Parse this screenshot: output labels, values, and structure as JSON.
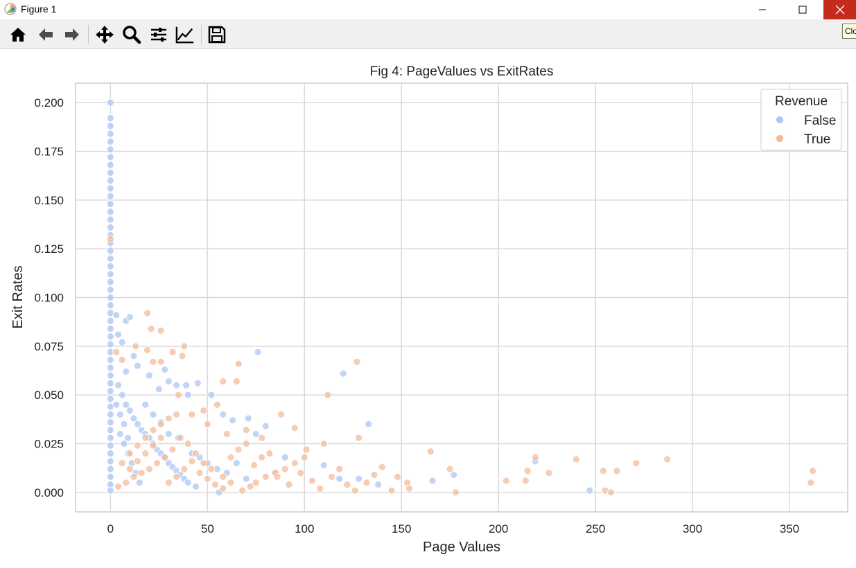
{
  "window": {
    "title": "Figure 1",
    "tooltip": "Close",
    "close_color": "#c42b1c"
  },
  "toolbar": {
    "buttons": [
      "home-icon",
      "back-arrow-icon",
      "forward-arrow-icon",
      "pan-icon",
      "zoom-icon",
      "subplots-icon",
      "axes-edit-icon",
      "save-icon"
    ]
  },
  "chart_data": {
    "type": "scatter",
    "title": "Fig 4: PageValues vs ExitRates",
    "xlabel": "Page Values",
    "ylabel": "Exit Rates",
    "xlim": [
      -18,
      380
    ],
    "ylim": [
      -0.01,
      0.21
    ],
    "xticks": [
      0,
      50,
      100,
      150,
      200,
      250,
      300,
      350
    ],
    "yticks": [
      0.0,
      0.025,
      0.05,
      0.075,
      0.1,
      0.125,
      0.15,
      0.175,
      0.2
    ],
    "ytick_labels": [
      "0.000",
      "0.025",
      "0.050",
      "0.075",
      "0.100",
      "0.125",
      "0.150",
      "0.175",
      "0.200"
    ],
    "grid": true,
    "legend": {
      "title": "Revenue",
      "position": "top-right"
    },
    "series": [
      {
        "name": "False",
        "color": "#aec7f5",
        "points": [
          [
            0,
            0.2
          ],
          [
            0,
            0.192
          ],
          [
            0,
            0.188
          ],
          [
            0,
            0.184
          ],
          [
            0,
            0.18
          ],
          [
            0,
            0.176
          ],
          [
            0,
            0.172
          ],
          [
            0,
            0.168
          ],
          [
            0,
            0.164
          ],
          [
            0,
            0.16
          ],
          [
            0,
            0.156
          ],
          [
            0,
            0.152
          ],
          [
            0,
            0.148
          ],
          [
            0,
            0.144
          ],
          [
            0,
            0.14
          ],
          [
            0,
            0.136
          ],
          [
            0,
            0.132
          ],
          [
            0,
            0.128
          ],
          [
            0,
            0.124
          ],
          [
            0,
            0.12
          ],
          [
            0,
            0.116
          ],
          [
            0,
            0.112
          ],
          [
            0,
            0.108
          ],
          [
            0,
            0.104
          ],
          [
            0,
            0.1
          ],
          [
            0,
            0.096
          ],
          [
            0,
            0.092
          ],
          [
            0,
            0.088
          ],
          [
            0,
            0.084
          ],
          [
            0,
            0.08
          ],
          [
            0,
            0.076
          ],
          [
            0,
            0.072
          ],
          [
            0,
            0.068
          ],
          [
            0,
            0.064
          ],
          [
            0,
            0.06
          ],
          [
            0,
            0.056
          ],
          [
            0,
            0.052
          ],
          [
            0,
            0.048
          ],
          [
            0,
            0.044
          ],
          [
            0,
            0.04
          ],
          [
            0,
            0.036
          ],
          [
            0,
            0.032
          ],
          [
            0,
            0.028
          ],
          [
            0,
            0.024
          ],
          [
            0,
            0.02
          ],
          [
            0,
            0.016
          ],
          [
            0,
            0.012
          ],
          [
            0,
            0.008
          ],
          [
            0,
            0.004
          ],
          [
            0,
            0.001
          ],
          [
            3,
            0.091
          ],
          [
            8,
            0.088
          ],
          [
            10,
            0.09
          ],
          [
            6,
            0.077
          ],
          [
            4,
            0.081
          ],
          [
            12,
            0.07
          ],
          [
            8,
            0.062
          ],
          [
            14,
            0.065
          ],
          [
            20,
            0.06
          ],
          [
            28,
            0.063
          ],
          [
            30,
            0.057
          ],
          [
            34,
            0.055
          ],
          [
            45,
            0.056
          ],
          [
            39,
            0.055
          ],
          [
            25,
            0.053
          ],
          [
            40,
            0.05
          ],
          [
            52,
            0.05
          ],
          [
            58,
            0.04
          ],
          [
            63,
            0.037
          ],
          [
            71,
            0.038
          ],
          [
            76,
            0.072
          ],
          [
            120,
            0.061
          ],
          [
            133,
            0.035
          ],
          [
            4,
            0.055
          ],
          [
            6,
            0.05
          ],
          [
            8,
            0.045
          ],
          [
            10,
            0.042
          ],
          [
            12,
            0.038
          ],
          [
            14,
            0.035
          ],
          [
            16,
            0.032
          ],
          [
            18,
            0.03
          ],
          [
            20,
            0.028
          ],
          [
            22,
            0.025
          ],
          [
            24,
            0.022
          ],
          [
            26,
            0.02
          ],
          [
            28,
            0.018
          ],
          [
            30,
            0.015
          ],
          [
            32,
            0.013
          ],
          [
            34,
            0.011
          ],
          [
            36,
            0.009
          ],
          [
            38,
            0.007
          ],
          [
            40,
            0.005
          ],
          [
            5,
            0.03
          ],
          [
            7,
            0.025
          ],
          [
            9,
            0.02
          ],
          [
            11,
            0.015
          ],
          [
            13,
            0.01
          ],
          [
            15,
            0.005
          ],
          [
            3,
            0.045
          ],
          [
            5,
            0.04
          ],
          [
            7,
            0.035
          ],
          [
            9,
            0.028
          ],
          [
            18,
            0.045
          ],
          [
            22,
            0.04
          ],
          [
            26,
            0.036
          ],
          [
            30,
            0.03
          ],
          [
            35,
            0.028
          ],
          [
            42,
            0.02
          ],
          [
            46,
            0.018
          ],
          [
            50,
            0.015
          ],
          [
            55,
            0.012
          ],
          [
            60,
            0.01
          ],
          [
            65,
            0.015
          ],
          [
            70,
            0.007
          ],
          [
            75,
            0.03
          ],
          [
            80,
            0.034
          ],
          [
            85,
            0.01
          ],
          [
            90,
            0.018
          ],
          [
            110,
            0.014
          ],
          [
            118,
            0.007
          ],
          [
            128,
            0.007
          ],
          [
            138,
            0.004
          ],
          [
            166,
            0.006
          ],
          [
            177,
            0.009
          ],
          [
            219,
            0.016
          ],
          [
            247,
            0.001
          ],
          [
            56,
            0.0
          ],
          [
            44,
            0.003
          ]
        ]
      },
      {
        "name": "True",
        "color": "#f5b99a",
        "points": [
          [
            0,
            0.13
          ],
          [
            19,
            0.092
          ],
          [
            21,
            0.084
          ],
          [
            26,
            0.083
          ],
          [
            3,
            0.072
          ],
          [
            6,
            0.068
          ],
          [
            13,
            0.075
          ],
          [
            19,
            0.073
          ],
          [
            22,
            0.067
          ],
          [
            26,
            0.067
          ],
          [
            32,
            0.072
          ],
          [
            37,
            0.07
          ],
          [
            38,
            0.075
          ],
          [
            35,
            0.05
          ],
          [
            42,
            0.04
          ],
          [
            48,
            0.042
          ],
          [
            55,
            0.045
          ],
          [
            58,
            0.057
          ],
          [
            65,
            0.057
          ],
          [
            66,
            0.066
          ],
          [
            50,
            0.035
          ],
          [
            60,
            0.03
          ],
          [
            70,
            0.032
          ],
          [
            78,
            0.028
          ],
          [
            88,
            0.04
          ],
          [
            95,
            0.033
          ],
          [
            101,
            0.022
          ],
          [
            112,
            0.05
          ],
          [
            127,
            0.067
          ],
          [
            128,
            0.028
          ],
          [
            110,
            0.025
          ],
          [
            100,
            0.018
          ],
          [
            95,
            0.015
          ],
          [
            90,
            0.012
          ],
          [
            85,
            0.01
          ],
          [
            80,
            0.008
          ],
          [
            75,
            0.005
          ],
          [
            72,
            0.003
          ],
          [
            68,
            0.001
          ],
          [
            62,
            0.005
          ],
          [
            58,
            0.008
          ],
          [
            52,
            0.012
          ],
          [
            48,
            0.015
          ],
          [
            44,
            0.02
          ],
          [
            40,
            0.025
          ],
          [
            36,
            0.028
          ],
          [
            32,
            0.022
          ],
          [
            28,
            0.018
          ],
          [
            24,
            0.015
          ],
          [
            20,
            0.012
          ],
          [
            16,
            0.01
          ],
          [
            12,
            0.008
          ],
          [
            8,
            0.005
          ],
          [
            4,
            0.003
          ],
          [
            10,
            0.02
          ],
          [
            14,
            0.024
          ],
          [
            18,
            0.028
          ],
          [
            22,
            0.032
          ],
          [
            26,
            0.035
          ],
          [
            30,
            0.038
          ],
          [
            34,
            0.04
          ],
          [
            6,
            0.015
          ],
          [
            10,
            0.012
          ],
          [
            14,
            0.016
          ],
          [
            18,
            0.02
          ],
          [
            22,
            0.024
          ],
          [
            26,
            0.028
          ],
          [
            30,
            0.005
          ],
          [
            34,
            0.008
          ],
          [
            38,
            0.012
          ],
          [
            42,
            0.016
          ],
          [
            46,
            0.01
          ],
          [
            50,
            0.007
          ],
          [
            54,
            0.004
          ],
          [
            58,
            0.002
          ],
          [
            62,
            0.018
          ],
          [
            66,
            0.022
          ],
          [
            70,
            0.025
          ],
          [
            74,
            0.014
          ],
          [
            78,
            0.018
          ],
          [
            82,
            0.02
          ],
          [
            86,
            0.008
          ],
          [
            92,
            0.004
          ],
          [
            98,
            0.01
          ],
          [
            104,
            0.006
          ],
          [
            108,
            0.002
          ],
          [
            114,
            0.008
          ],
          [
            118,
            0.012
          ],
          [
            122,
            0.004
          ],
          [
            126,
            0.001
          ],
          [
            132,
            0.005
          ],
          [
            136,
            0.009
          ],
          [
            140,
            0.013
          ],
          [
            145,
            0.001
          ],
          [
            148,
            0.008
          ],
          [
            153,
            0.005
          ],
          [
            154,
            0.002
          ],
          [
            165,
            0.021
          ],
          [
            175,
            0.012
          ],
          [
            178,
            0.0
          ],
          [
            204,
            0.006
          ],
          [
            214,
            0.006
          ],
          [
            215,
            0.011
          ],
          [
            219,
            0.018
          ],
          [
            226,
            0.01
          ],
          [
            240,
            0.017
          ],
          [
            254,
            0.011
          ],
          [
            255,
            0.001
          ],
          [
            258,
            0.0
          ],
          [
            261,
            0.011
          ],
          [
            271,
            0.015
          ],
          [
            287,
            0.017
          ],
          [
            361,
            0.005
          ],
          [
            362,
            0.011
          ]
        ]
      }
    ]
  }
}
